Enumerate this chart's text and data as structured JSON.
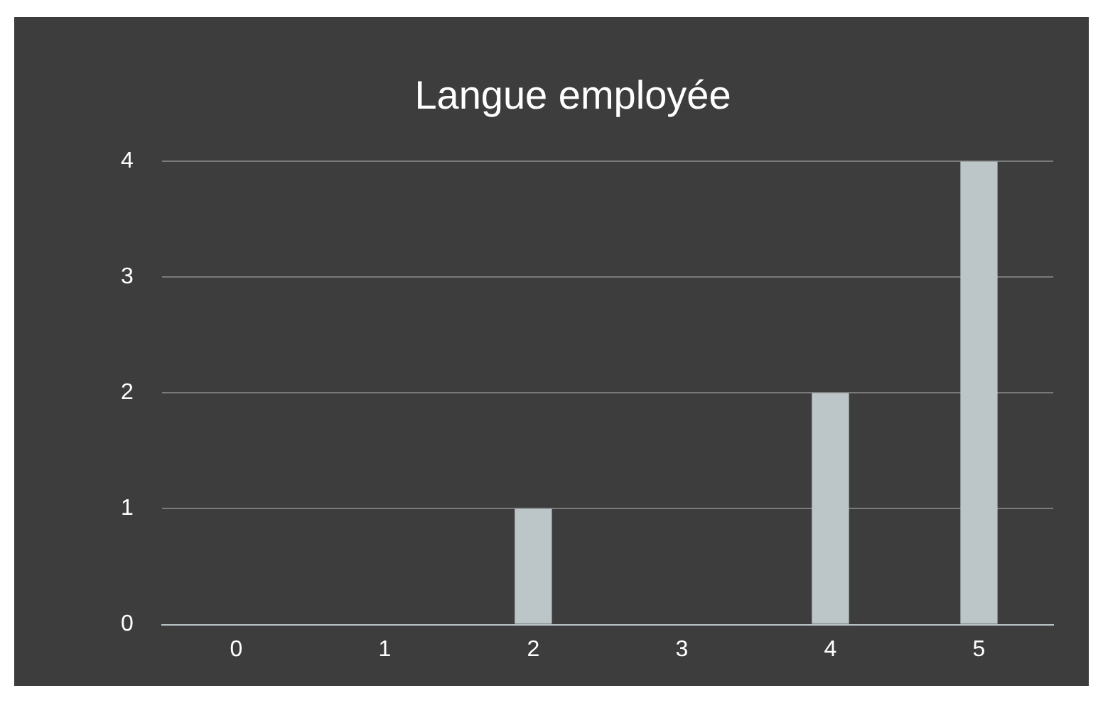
{
  "chart_data": {
    "type": "bar",
    "title": "Langue employée",
    "categories": [
      "0",
      "1",
      "2",
      "3",
      "4",
      "5"
    ],
    "values": [
      0,
      0,
      1,
      0,
      2,
      4
    ],
    "color": "#bcc5c7",
    "ylim": [
      0,
      4
    ],
    "yticks": [
      0,
      1,
      2,
      3,
      4
    ],
    "grid": "y",
    "legend": false
  }
}
